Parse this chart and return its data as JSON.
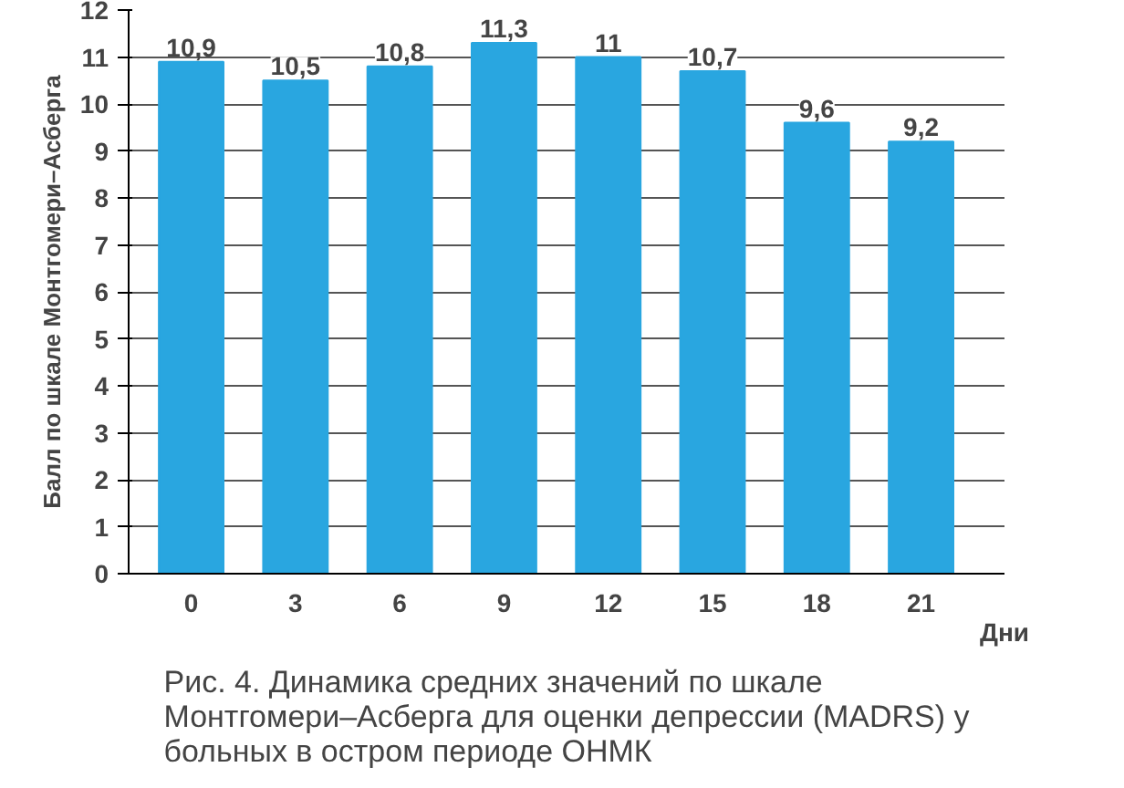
{
  "chart_data": {
    "type": "bar",
    "title": "Рис. 4. Динамика средних значений по шкале Монтгомери–Асберга для оценки депрессии (MADRS) у больных в остром периоде ОНМК",
    "xlabel": "Дни",
    "ylabel": "Балл по шкале Монтгомери–Асберга",
    "categories": [
      "0",
      "3",
      "6",
      "9",
      "12",
      "15",
      "18",
      "21"
    ],
    "values": [
      10.9,
      10.5,
      10.8,
      11.3,
      11,
      10.7,
      9.6,
      9.2
    ],
    "value_labels": [
      "10,9",
      "10,5",
      "10,8",
      "11,3",
      "11",
      "10,7",
      "9,6",
      "9,2"
    ],
    "color": "#29a6e0",
    "ylim": [
      0,
      12
    ],
    "yticks": [
      0,
      1,
      2,
      3,
      4,
      5,
      6,
      7,
      8,
      9,
      10,
      11,
      12
    ],
    "grid": "y"
  }
}
